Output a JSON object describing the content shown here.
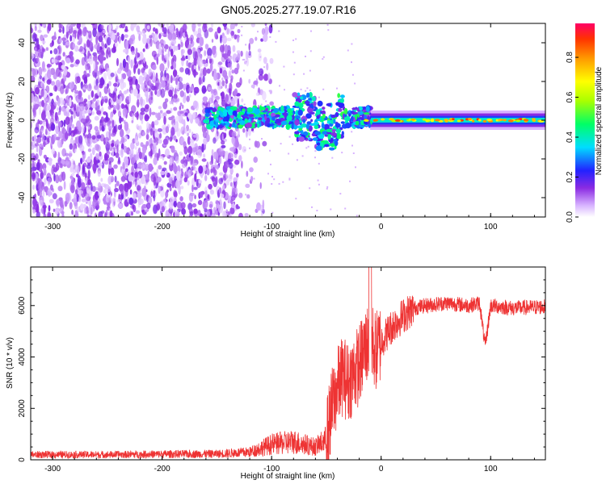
{
  "title": "GN05.2025.277.19.07.R16",
  "chart_data": [
    {
      "type": "heatmap",
      "name": "spectrogram",
      "xlabel": "Height of straight line (km)",
      "ylabel": "Frequency (Hz)",
      "xlim": [
        -320,
        150
      ],
      "ylim": [
        -50,
        50
      ],
      "xticks": [
        -300,
        -200,
        -100,
        0,
        100
      ],
      "yticks": [
        -40,
        -20,
        0,
        20,
        40
      ],
      "colorbar": {
        "label": "Normalized spectral amplitude",
        "range": [
          0,
          0.97
        ],
        "ticks": [
          "0.0",
          "0.2",
          "0.4",
          "0.6",
          "0.8"
        ],
        "tick_values": [
          0.0,
          0.2,
          0.4,
          0.6,
          0.8
        ]
      },
      "regions": [
        {
          "name": "noise",
          "x": [
            -320,
            -130
          ],
          "y": [
            -50,
            50
          ],
          "amplitude": [
            0.02,
            0.18
          ]
        },
        {
          "name": "ionospheric-band",
          "x": [
            -160,
            -10
          ],
          "y": [
            -12,
            12
          ],
          "amplitude": [
            0.1,
            0.55
          ]
        },
        {
          "name": "carrier-line",
          "x": [
            -10,
            150
          ],
          "y": [
            -2,
            2
          ],
          "amplitude": [
            0.3,
            0.95
          ]
        }
      ]
    },
    {
      "type": "line",
      "name": "snr",
      "xlabel": "Height of straight line (km)",
      "ylabel": "SNR (10 * v/v)",
      "xlim": [
        -320,
        150
      ],
      "ylim": [
        0,
        7500
      ],
      "xticks": [
        -300,
        -200,
        -100,
        0,
        100
      ],
      "yticks": [
        0,
        2000,
        4000,
        6000
      ],
      "color": "#ee3333",
      "x": [
        -320,
        -250,
        -200,
        -150,
        -120,
        -100,
        -80,
        -60,
        -50,
        -45,
        -40,
        -35,
        -30,
        -25,
        -20,
        -15,
        -10,
        -5,
        0,
        10,
        20,
        30,
        40,
        60,
        80,
        90,
        95,
        100,
        120,
        150
      ],
      "y": [
        200,
        200,
        220,
        230,
        300,
        600,
        700,
        500,
        800,
        2000,
        2800,
        3300,
        3000,
        3400,
        3700,
        4300,
        4800,
        4200,
        4600,
        5200,
        5600,
        5900,
        6000,
        6100,
        6000,
        6100,
        4400,
        6000,
        5900,
        5950
      ]
    }
  ]
}
